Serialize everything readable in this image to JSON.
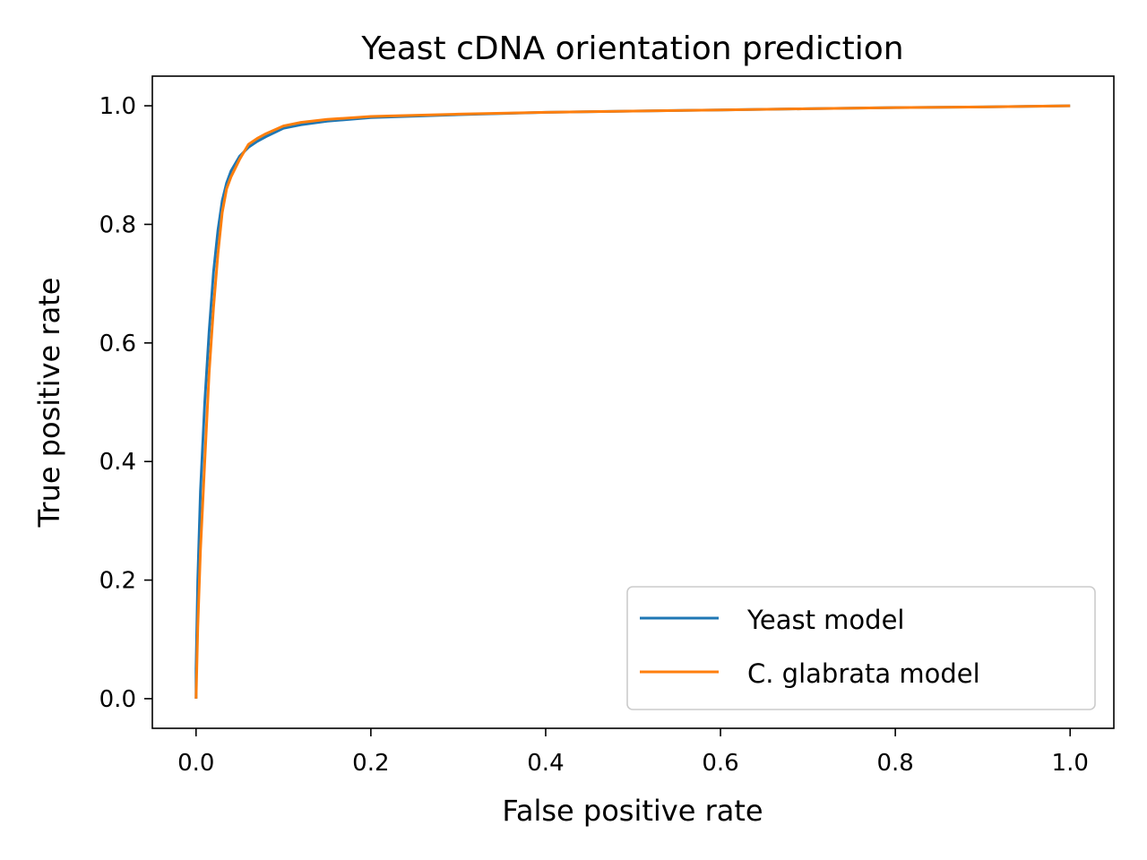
{
  "chart_data": {
    "type": "line",
    "title": "Yeast cDNA orientation prediction",
    "xlabel": "False positive rate",
    "ylabel": "True positive rate",
    "xlim": [
      -0.05,
      1.05
    ],
    "ylim": [
      -0.05,
      1.05
    ],
    "xticks": [
      "0.0",
      "0.2",
      "0.4",
      "0.6",
      "0.8",
      "1.0"
    ],
    "yticks": [
      "0.0",
      "0.2",
      "0.4",
      "0.6",
      "0.8",
      "1.0"
    ],
    "grid": false,
    "legend_position": "lower-right",
    "series": [
      {
        "name": "Yeast model",
        "color": "#1f77b4",
        "x": [
          0.0,
          0.0,
          0.002,
          0.005,
          0.01,
          0.015,
          0.02,
          0.025,
          0.03,
          0.035,
          0.04,
          0.05,
          0.06,
          0.07,
          0.08,
          0.1,
          0.12,
          0.15,
          0.2,
          0.3,
          0.4,
          0.5,
          0.6,
          0.7,
          0.8,
          0.9,
          1.0
        ],
        "y": [
          0.0,
          0.05,
          0.2,
          0.35,
          0.5,
          0.62,
          0.72,
          0.79,
          0.84,
          0.87,
          0.89,
          0.915,
          0.93,
          0.94,
          0.948,
          0.962,
          0.968,
          0.974,
          0.98,
          0.985,
          0.989,
          0.991,
          0.993,
          0.995,
          0.997,
          0.998,
          1.0
        ]
      },
      {
        "name": "C. glabrata model",
        "color": "#ff7f0e",
        "x": [
          0.0,
          0.002,
          0.005,
          0.01,
          0.015,
          0.02,
          0.025,
          0.03,
          0.035,
          0.04,
          0.05,
          0.06,
          0.07,
          0.08,
          0.1,
          0.12,
          0.15,
          0.2,
          0.3,
          0.4,
          0.5,
          0.6,
          0.7,
          0.8,
          0.9,
          1.0
        ],
        "y": [
          0.0,
          0.12,
          0.25,
          0.4,
          0.55,
          0.66,
          0.75,
          0.82,
          0.86,
          0.88,
          0.91,
          0.935,
          0.945,
          0.953,
          0.966,
          0.972,
          0.977,
          0.982,
          0.986,
          0.989,
          0.991,
          0.993,
          0.995,
          0.997,
          0.998,
          1.0
        ]
      }
    ]
  }
}
